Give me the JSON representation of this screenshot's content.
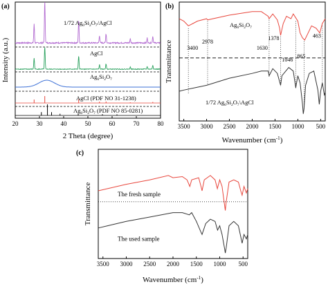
{
  "chart_data": [
    {
      "panel": "(a)",
      "type": "line",
      "xlabel": "2 Theta (degree)",
      "ylabel": "Intensity (a.u.)",
      "xlim": [
        20,
        80
      ],
      "xticks": [
        20,
        30,
        40,
        50,
        60,
        70,
        80
      ],
      "colors": {
        "composite": "#b36cd1",
        "AgCl": "#2ca25f",
        "Ag6Si2O7": "#3b6fd6",
        "pdf_AgCl": "#e8463c",
        "pdf_Ag6Si2O7": "#000000"
      },
      "series": [
        {
          "name": "1/72 Ag6Si2O7/AgCl",
          "label_parts": [
            "1/72 Ag",
            "6",
            "Si",
            "2",
            "O",
            "7",
            "/AgCl"
          ],
          "color": "#b36cd1",
          "peaks": [
            [
              27.8,
              0.45
            ],
            [
              32.2,
              1.0
            ],
            [
              46.2,
              0.55
            ],
            [
              54.8,
              0.18
            ],
            [
              57.5,
              0.22
            ],
            [
              67.5,
              0.1
            ],
            [
              74.5,
              0.12
            ],
            [
              76.8,
              0.16
            ]
          ]
        },
        {
          "name": "AgCl",
          "label_parts": [
            "AgCl"
          ],
          "color": "#2ca25f",
          "peaks": [
            [
              27.8,
              0.5
            ],
            [
              32.2,
              1.0
            ],
            [
              46.2,
              0.6
            ],
            [
              54.8,
              0.2
            ],
            [
              57.5,
              0.24
            ],
            [
              67.5,
              0.1
            ],
            [
              74.5,
              0.12
            ],
            [
              76.8,
              0.18
            ]
          ]
        },
        {
          "name": "Ag6Si2O7",
          "label_parts": [
            "Ag",
            "6",
            "Si",
            "2",
            "O",
            "7"
          ],
          "color": "#3b6fd6",
          "broad_hump": {
            "center": 33,
            "width": 4.5,
            "height": 1.0
          }
        },
        {
          "name": "AgCl (PDF NO 31-1238)",
          "label_parts": [
            "AgCl (PDF NO 31-1238)"
          ],
          "color": "#e8463c",
          "sticks": [
            [
              27.8,
              0.5
            ],
            [
              32.2,
              1.0
            ],
            [
              46.2,
              0.55
            ],
            [
              54.8,
              0.2
            ],
            [
              57.5,
              0.22
            ],
            [
              67.5,
              0.1
            ],
            [
              76.8,
              0.15
            ]
          ]
        },
        {
          "name": "Ag6Si2O7 (PDF NO 85-0281)",
          "label_parts": [
            "Ag",
            "6",
            "Si",
            "2",
            "O",
            "7",
            " (PDF NO 85-0281)"
          ],
          "color": "#000000",
          "sticks": [
            [
              30.8,
              0.3
            ],
            [
              33.3,
              1.0
            ],
            [
              35.0,
              0.3
            ],
            [
              38.5,
              0.15
            ],
            [
              46.0,
              0.15
            ],
            [
              56.0,
              0.12
            ],
            [
              62.0,
              0.1
            ]
          ]
        }
      ]
    },
    {
      "panel": "(b)",
      "type": "line",
      "xlabel": "Wavenumber (cm-1)",
      "xlabel_parts": [
        "Wavenumber (cm",
        "-1",
        ")"
      ],
      "ylabel": "Transmittance",
      "xlim": [
        3600,
        400
      ],
      "xticks": [
        3500,
        3000,
        2500,
        2000,
        1500,
        1000,
        500
      ],
      "annotations": [
        "3400",
        "2978",
        "1630",
        "1378",
        "1046",
        "865",
        "463"
      ],
      "colors": {
        "Ag6Si2O7": "#e8463c",
        "composite": "#333333"
      },
      "series": [
        {
          "name": "Ag6Si2O7",
          "label_parts": [
            "Ag",
            "6",
            "Si",
            "2",
            "O",
            "7"
          ],
          "color": "#e8463c",
          "points": [
            [
              3600,
              0.86
            ],
            [
              3500,
              0.84
            ],
            [
              3400,
              0.8
            ],
            [
              3300,
              0.82
            ],
            [
              3200,
              0.84
            ],
            [
              3000,
              0.86
            ],
            [
              2978,
              0.85
            ],
            [
              2500,
              0.89
            ],
            [
              2000,
              0.92
            ],
            [
              1800,
              0.92
            ],
            [
              1650,
              0.88
            ],
            [
              1630,
              0.86
            ],
            [
              1550,
              0.9
            ],
            [
              1450,
              0.85
            ],
            [
              1400,
              0.78
            ],
            [
              1378,
              0.72
            ],
            [
              1320,
              0.82
            ],
            [
              1250,
              0.88
            ],
            [
              1150,
              0.86
            ],
            [
              1100,
              0.9
            ],
            [
              1000,
              0.84
            ],
            [
              950,
              0.74
            ],
            [
              900,
              0.7
            ],
            [
              850,
              0.68
            ],
            [
              800,
              0.72
            ],
            [
              700,
              0.8
            ],
            [
              600,
              0.78
            ],
            [
              520,
              0.74
            ],
            [
              463,
              0.82
            ],
            [
              400,
              0.86
            ]
          ]
        },
        {
          "name": "1/72 Ag6Si2O7/AgCl",
          "label_parts": [
            "1/72 Ag",
            "6",
            "Si",
            "2",
            "O",
            "7",
            "\\AgCl"
          ],
          "color": "#333333",
          "points": [
            [
              3600,
              0.25
            ],
            [
              3500,
              0.26
            ],
            [
              3000,
              0.3
            ],
            [
              2500,
              0.36
            ],
            [
              2000,
              0.4
            ],
            [
              1800,
              0.42
            ],
            [
              1650,
              0.42
            ],
            [
              1630,
              0.38
            ],
            [
              1550,
              0.44
            ],
            [
              1450,
              0.4
            ],
            [
              1378,
              0.3
            ],
            [
              1350,
              0.38
            ],
            [
              1200,
              0.45
            ],
            [
              1100,
              0.42
            ],
            [
              1046,
              0.28
            ],
            [
              1000,
              0.38
            ],
            [
              950,
              0.32
            ],
            [
              900,
              0.15
            ],
            [
              880,
              0.06
            ],
            [
              865,
              0.1
            ],
            [
              830,
              0.3
            ],
            [
              750,
              0.4
            ],
            [
              650,
              0.42
            ],
            [
              560,
              0.26
            ],
            [
              530,
              0.14
            ],
            [
              500,
              0.25
            ],
            [
              463,
              0.32
            ],
            [
              420,
              0.22
            ],
            [
              400,
              0.24
            ]
          ]
        }
      ]
    },
    {
      "panel": "(c)",
      "type": "line",
      "xlabel": "Wavenumber (cm-1)",
      "xlabel_parts": [
        "Wavenumber (cm",
        "-1",
        ")"
      ],
      "ylabel": "Transmittance",
      "xlim": [
        3600,
        400
      ],
      "xticks": [
        3500,
        3000,
        2500,
        2000,
        1500,
        1000,
        500
      ],
      "colors": {
        "fresh": "#e8463c",
        "used": "#333333"
      },
      "series": [
        {
          "name": "The fresh sample",
          "label_parts": [
            "The fresh sample"
          ],
          "color": "#e8463c",
          "points": [
            [
              3600,
              0.62
            ],
            [
              3400,
              0.64
            ],
            [
              3000,
              0.68
            ],
            [
              2500,
              0.72
            ],
            [
              2100,
              0.76
            ],
            [
              2000,
              0.74
            ],
            [
              1800,
              0.75
            ],
            [
              1700,
              0.72
            ],
            [
              1640,
              0.66
            ],
            [
              1600,
              0.72
            ],
            [
              1450,
              0.74
            ],
            [
              1400,
              0.66
            ],
            [
              1378,
              0.62
            ],
            [
              1330,
              0.72
            ],
            [
              1200,
              0.76
            ],
            [
              1100,
              0.72
            ],
            [
              1050,
              0.64
            ],
            [
              1000,
              0.72
            ],
            [
              950,
              0.66
            ],
            [
              900,
              0.5
            ],
            [
              880,
              0.44
            ],
            [
              860,
              0.52
            ],
            [
              800,
              0.7
            ],
            [
              700,
              0.72
            ],
            [
              600,
              0.7
            ],
            [
              550,
              0.62
            ],
            [
              520,
              0.58
            ],
            [
              480,
              0.66
            ],
            [
              430,
              0.6
            ],
            [
              400,
              0.64
            ]
          ]
        },
        {
          "name": "The used sample",
          "label_parts": [
            "The used sample"
          ],
          "color": "#333333",
          "points": [
            [
              3600,
              0.28
            ],
            [
              3400,
              0.3
            ],
            [
              3000,
              0.34
            ],
            [
              2500,
              0.38
            ],
            [
              2000,
              0.42
            ],
            [
              1800,
              0.42
            ],
            [
              1650,
              0.4
            ],
            [
              1600,
              0.42
            ],
            [
              1500,
              0.34
            ],
            [
              1400,
              0.24
            ],
            [
              1378,
              0.22
            ],
            [
              1300,
              0.32
            ],
            [
              1200,
              0.36
            ],
            [
              1100,
              0.34
            ],
            [
              1046,
              0.26
            ],
            [
              1000,
              0.3
            ],
            [
              950,
              0.22
            ],
            [
              900,
              0.1
            ],
            [
              880,
              0.05
            ],
            [
              860,
              0.1
            ],
            [
              800,
              0.3
            ],
            [
              700,
              0.34
            ],
            [
              600,
              0.3
            ],
            [
              550,
              0.2
            ],
            [
              520,
              0.14
            ],
            [
              480,
              0.22
            ],
            [
              430,
              0.18
            ],
            [
              400,
              0.22
            ]
          ]
        }
      ]
    }
  ]
}
